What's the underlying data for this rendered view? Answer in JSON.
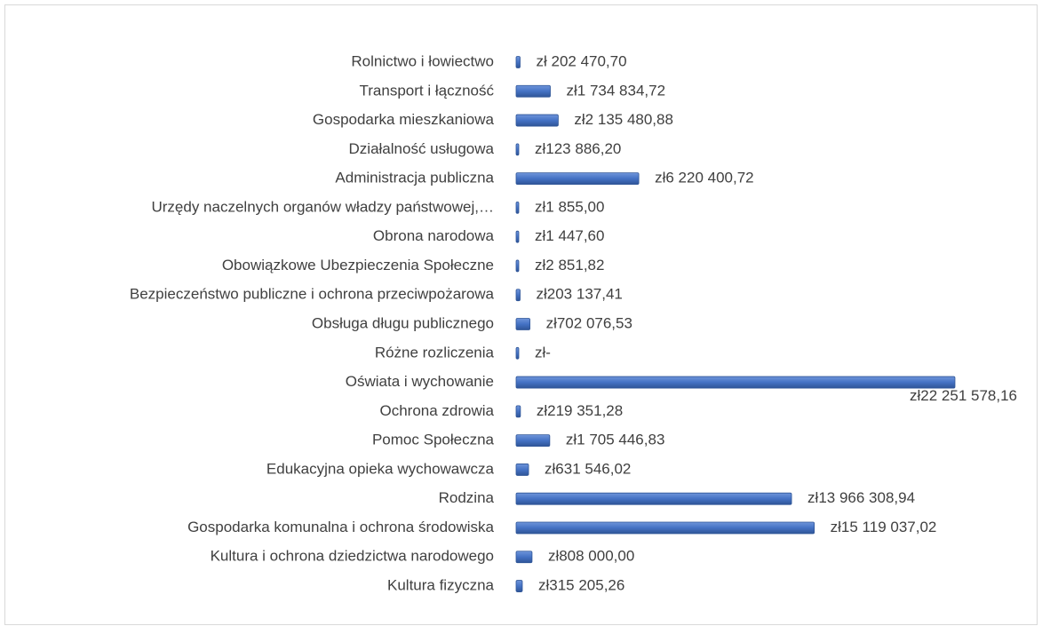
{
  "chart_data": {
    "type": "bar",
    "orientation": "horizontal",
    "color": "#4472c4",
    "categories": [
      "Rolnictwo i łowiectwo",
      "Transport i łączność",
      "Gospodarka mieszkaniowa",
      "Działalność usługowa",
      "Administracja publiczna",
      "Urzędy naczelnych organów władzy państwowej,…",
      "Obrona narodowa",
      "Obowiązkowe Ubezpieczenia Społeczne",
      "Bezpieczeństwo publiczne i ochrona przeciwpożarowa",
      "Obsługa długu publicznego",
      "Różne rozliczenia",
      "Oświata i wychowanie",
      "Ochrona zdrowia",
      "Pomoc Społeczna",
      "Edukacyjna opieka wychowawcza",
      "Rodzina",
      "Gospodarka komunalna i ochrona środowiska",
      "Kultura i ochrona dziedzictwa narodowego",
      "Kultura fizyczna"
    ],
    "values": [
      202470.7,
      1734834.72,
      2135480.88,
      123886.2,
      6220400.72,
      1855.0,
      1447.6,
      2851.82,
      203137.41,
      702076.53,
      0,
      22251578.16,
      219351.28,
      1705446.83,
      631546.02,
      13966308.94,
      15119037.02,
      808000.0,
      315205.26
    ],
    "value_labels": [
      "zł 202 470,70",
      "zł1 734 834,72",
      "zł2 135 480,88",
      "zł123 886,20",
      "zł6 220 400,72",
      "zł1 855,00",
      "zł1 447,60",
      "zł2 851,82",
      "zł203 137,41",
      "zł702 076,53",
      "zł-",
      "zł22 251 578,16",
      "zł219 351,28",
      "zł1 705 446,83",
      "zł631 546,02",
      "zł13 966 308,94",
      "zł15 119 037,02",
      "zł808 000,00",
      "zł315 205,26"
    ]
  }
}
